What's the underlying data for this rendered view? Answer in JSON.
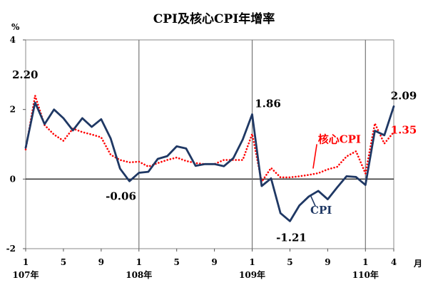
{
  "chart_data": {
    "type": "line",
    "title": "CPI及核心CPI年增率",
    "ylabel": "%",
    "xlabel": "月",
    "ylim": [
      -2,
      4
    ],
    "yticks": [
      "4",
      "2",
      "0",
      "-2"
    ],
    "x": [
      "107-01",
      "107-02",
      "107-03",
      "107-04",
      "107-05",
      "107-06",
      "107-07",
      "107-08",
      "107-09",
      "107-10",
      "107-11",
      "107-12",
      "108-01",
      "108-02",
      "108-03",
      "108-04",
      "108-05",
      "108-06",
      "108-07",
      "108-08",
      "108-09",
      "108-10",
      "108-11",
      "108-12",
      "109-01",
      "109-02",
      "109-03",
      "109-04",
      "109-05",
      "109-06",
      "109-07",
      "109-08",
      "109-09",
      "109-10",
      "109-11",
      "109-12",
      "110-01",
      "110-02",
      "110-03",
      "110-04"
    ],
    "month_ticks": [
      {
        "index": 0,
        "label": "1"
      },
      {
        "index": 4,
        "label": "5"
      },
      {
        "index": 8,
        "label": "9"
      },
      {
        "index": 12,
        "label": "1"
      },
      {
        "index": 16,
        "label": "5"
      },
      {
        "index": 20,
        "label": "9"
      },
      {
        "index": 24,
        "label": "1"
      },
      {
        "index": 28,
        "label": "5"
      },
      {
        "index": 32,
        "label": "9"
      },
      {
        "index": 36,
        "label": "1"
      },
      {
        "index": 39,
        "label": "4"
      }
    ],
    "year_labels": [
      {
        "index": 0,
        "label": "107年"
      },
      {
        "index": 12,
        "label": "108年"
      },
      {
        "index": 24,
        "label": "109年"
      },
      {
        "index": 36,
        "label": "110年"
      }
    ],
    "year_dividers": [
      12,
      24,
      36
    ],
    "series": [
      {
        "name": "CPI",
        "color": "#1f3864",
        "style": "solid",
        "values": [
          0.9,
          2.2,
          1.58,
          2.0,
          1.75,
          1.4,
          1.75,
          1.5,
          1.72,
          1.17,
          0.3,
          -0.06,
          0.18,
          0.21,
          0.58,
          0.66,
          0.94,
          0.88,
          0.38,
          0.43,
          0.43,
          0.37,
          0.6,
          1.14,
          1.86,
          -0.2,
          0.02,
          -0.98,
          -1.21,
          -0.76,
          -0.5,
          -0.34,
          -0.58,
          -0.24,
          0.08,
          0.06,
          -0.17,
          1.39,
          1.26,
          2.09
        ]
      },
      {
        "name": "核心CPI",
        "color": "#ff0000",
        "style": "dotted",
        "values": [
          0.85,
          2.4,
          1.55,
          1.28,
          1.1,
          1.45,
          1.35,
          1.28,
          1.2,
          0.7,
          0.55,
          0.48,
          0.5,
          0.36,
          0.46,
          0.55,
          0.62,
          0.52,
          0.46,
          0.43,
          0.43,
          0.55,
          0.55,
          0.55,
          1.3,
          -0.08,
          0.32,
          0.05,
          0.05,
          0.08,
          0.12,
          0.17,
          0.28,
          0.35,
          0.65,
          0.8,
          0.16,
          1.6,
          1.02,
          1.35
        ]
      }
    ],
    "annotations": [
      {
        "text": "2.20",
        "color": "#000000"
      },
      {
        "text": "-0.06",
        "color": "#000000"
      },
      {
        "text": "1.86",
        "color": "#000000"
      },
      {
        "text": "-1.21",
        "color": "#000000"
      },
      {
        "text": "2.09",
        "color": "#000000"
      },
      {
        "text": "1.35",
        "color": "#ff0000"
      }
    ],
    "series_labels": [
      {
        "text": "核心CPI",
        "color": "#ff0000"
      },
      {
        "text": "CPI",
        "color": "#1f3864"
      }
    ],
    "grid": false
  }
}
